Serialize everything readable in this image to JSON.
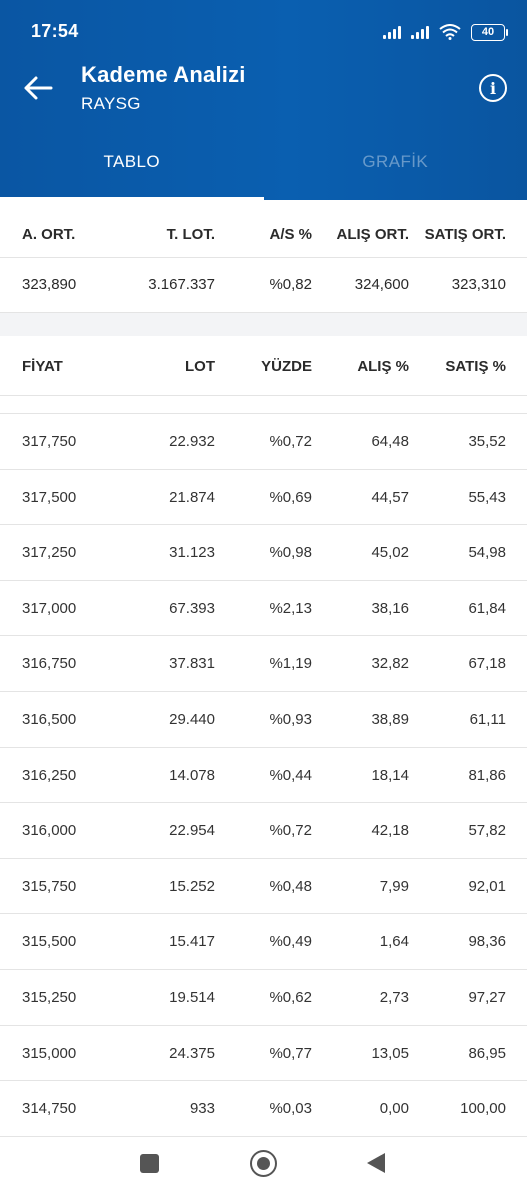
{
  "status_bar": {
    "time": "17:54",
    "battery": "40",
    "icons": [
      "signal-icon",
      "signal-icon",
      "wifi-icon",
      "battery-icon"
    ]
  },
  "header": {
    "title": "Kademe Analizi",
    "subtitle": "RAYSG",
    "back_icon": "arrow-left-icon",
    "info_icon": "info-icon"
  },
  "tabs": [
    {
      "label": "TABLO",
      "active": true
    },
    {
      "label": "GRAFİK",
      "active": false
    }
  ],
  "summary": {
    "headers": [
      "A. ORT.",
      "T. LOT.",
      "A/S %",
      "ALIŞ ORT.",
      "SATIŞ ORT."
    ],
    "values": [
      "323,890",
      "3.167.337",
      "%0,82",
      "324,600",
      "323,310"
    ]
  },
  "table": {
    "headers": [
      "FİYAT",
      "LOT",
      "YÜZDE",
      "ALIŞ %",
      "SATIŞ %"
    ],
    "rows": [
      [
        "317,750",
        "22.932",
        "%0,72",
        "64,48",
        "35,52"
      ],
      [
        "317,500",
        "21.874",
        "%0,69",
        "44,57",
        "55,43"
      ],
      [
        "317,250",
        "31.123",
        "%0,98",
        "45,02",
        "54,98"
      ],
      [
        "317,000",
        "67.393",
        "%2,13",
        "38,16",
        "61,84"
      ],
      [
        "316,750",
        "37.831",
        "%1,19",
        "32,82",
        "67,18"
      ],
      [
        "316,500",
        "29.440",
        "%0,93",
        "38,89",
        "61,11"
      ],
      [
        "316,250",
        "14.078",
        "%0,44",
        "18,14",
        "81,86"
      ],
      [
        "316,000",
        "22.954",
        "%0,72",
        "42,18",
        "57,82"
      ],
      [
        "315,750",
        "15.252",
        "%0,48",
        "7,99",
        "92,01"
      ],
      [
        "315,500",
        "15.417",
        "%0,49",
        "1,64",
        "98,36"
      ],
      [
        "315,250",
        "19.514",
        "%0,62",
        "2,73",
        "97,27"
      ],
      [
        "315,000",
        "24.375",
        "%0,77",
        "13,05",
        "86,95"
      ],
      [
        "314,750",
        "933",
        "%0,03",
        "0,00",
        "100,00"
      ]
    ]
  },
  "nav_bar": {
    "icons": [
      "recents-icon",
      "home-icon",
      "back-icon"
    ]
  }
}
